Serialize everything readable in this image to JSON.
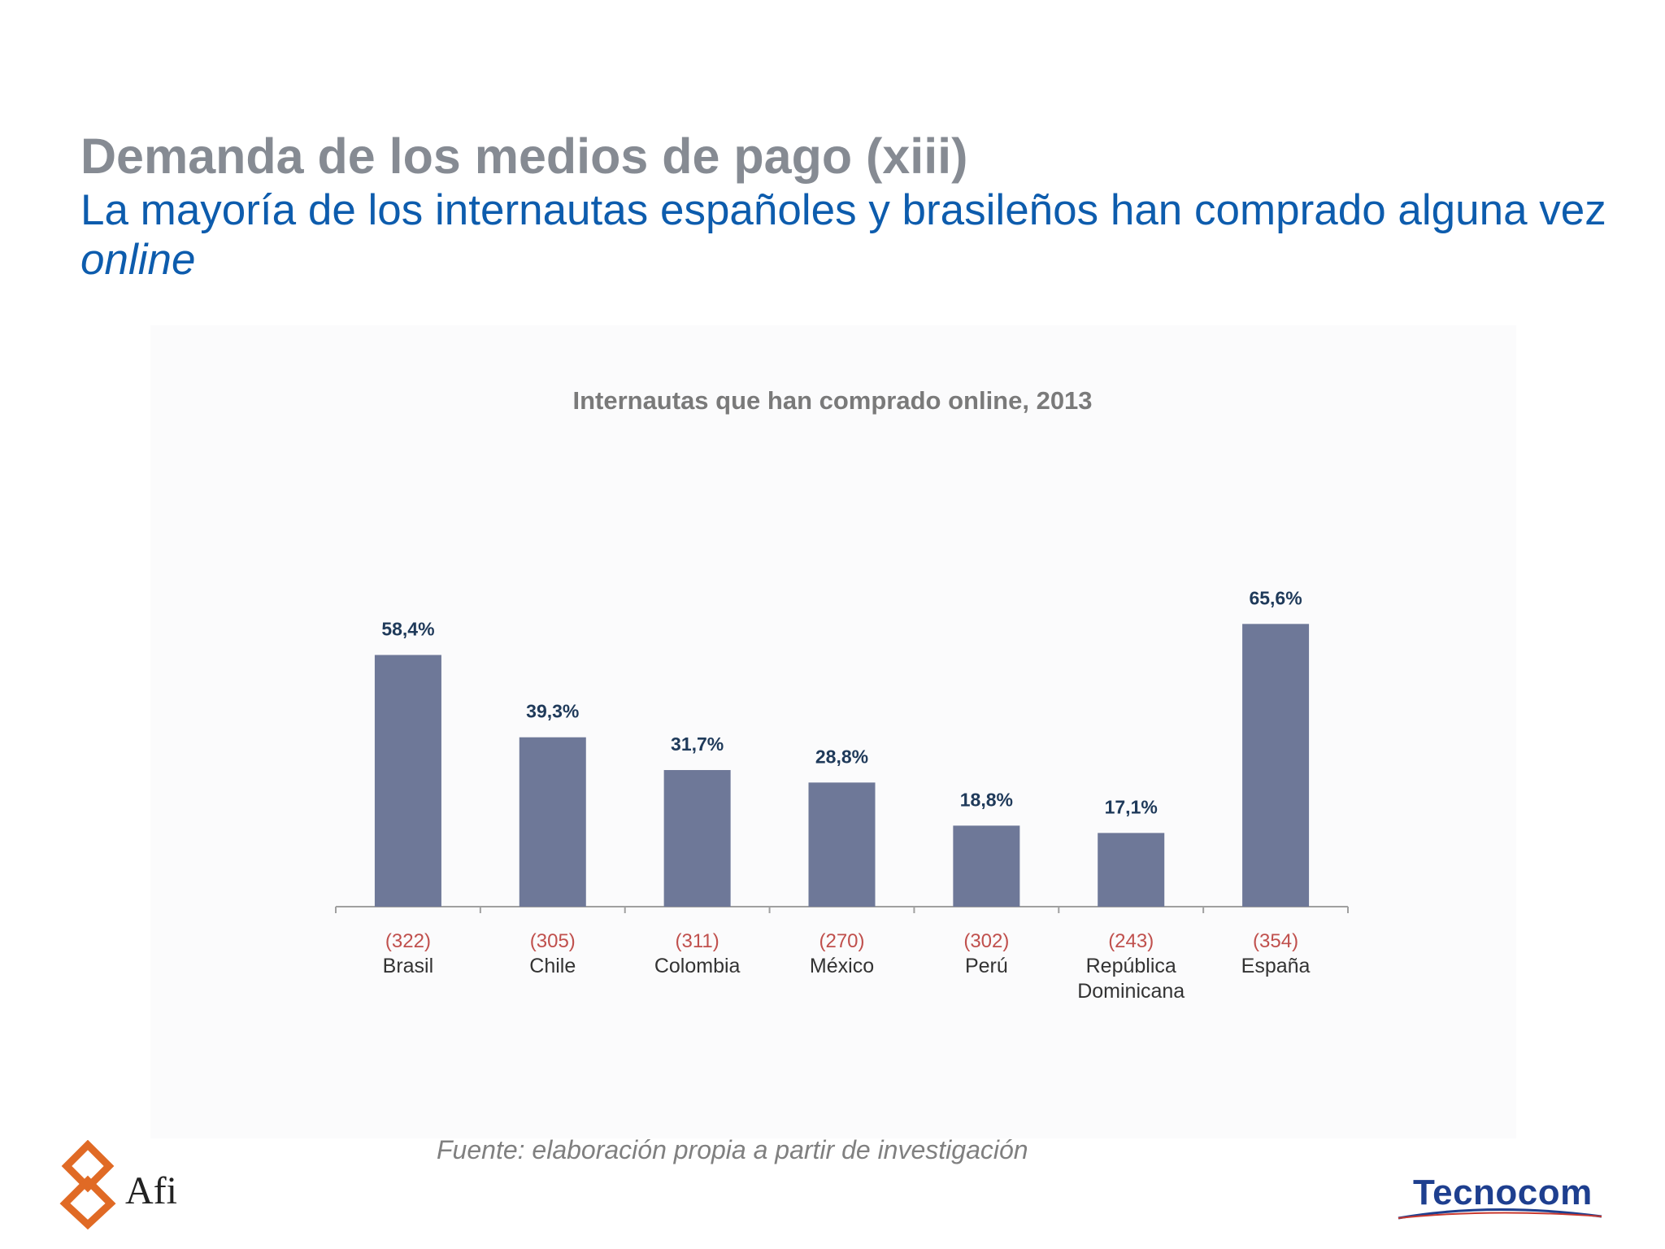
{
  "header": {
    "title": "Demanda de los medios de pago (xiii)",
    "subtitle_main": "La mayoría de los internautas españoles y brasileños han comprado alguna vez",
    "subtitle_italic": "online"
  },
  "chart_data": {
    "type": "bar",
    "title": "Internautas que han comprado online, 2013",
    "categories": [
      "Brasil",
      "Chile",
      "Colombia",
      "México",
      "Perú",
      "República Dominicana",
      "España"
    ],
    "category_lines": [
      [
        "Brasil"
      ],
      [
        "Chile"
      ],
      [
        "Colombia"
      ],
      [
        "México"
      ],
      [
        "Perú"
      ],
      [
        "República",
        "Dominicana"
      ],
      [
        "España"
      ]
    ],
    "sample_sizes": [
      "(322)",
      "(305)",
      "(311)",
      "(270)",
      "(302)",
      "(243)",
      "(354)"
    ],
    "values": [
      58.4,
      39.3,
      31.7,
      28.8,
      18.8,
      17.1,
      65.6
    ],
    "value_labels": [
      "58,4%",
      "39,3%",
      "31,7%",
      "28,8%",
      "18,8%",
      "17,1%",
      "65,6%"
    ],
    "ylim": [
      0,
      100
    ],
    "bar_color": "#6e7898",
    "value_label_color": "#1f3a5a",
    "sample_size_color": "#c0504d",
    "grid": false
  },
  "footer": {
    "source": "Fuente: elaboración propia a partir de investigación",
    "logo_left": "Afi",
    "logo_right": "Tecnocom"
  },
  "colors": {
    "title": "#868b93",
    "subtitle": "#0d5cad",
    "afi_orange": "#e06a25",
    "tecnocom_blue": "#1e3f8f",
    "tecnocom_red": "#c8382e"
  }
}
